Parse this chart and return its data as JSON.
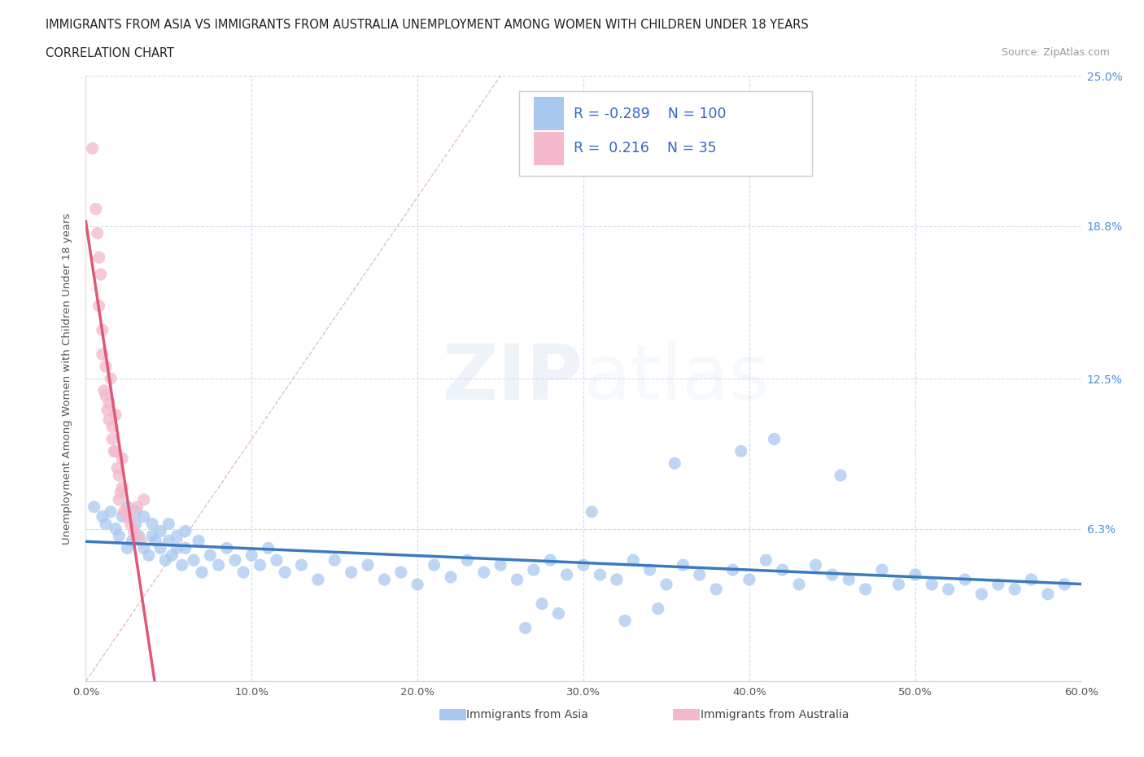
{
  "title_line1": "IMMIGRANTS FROM ASIA VS IMMIGRANTS FROM AUSTRALIA UNEMPLOYMENT AMONG WOMEN WITH CHILDREN UNDER 18 YEARS",
  "title_line2": "CORRELATION CHART",
  "source_text": "Source: ZipAtlas.com",
  "ylabel": "Unemployment Among Women with Children Under 18 years",
  "xlim": [
    0.0,
    0.6
  ],
  "ylim": [
    0.0,
    0.25
  ],
  "yticks": [
    0.0,
    0.063,
    0.125,
    0.188,
    0.25
  ],
  "ytick_labels": [
    "",
    "6.3%",
    "12.5%",
    "18.8%",
    "25.0%"
  ],
  "xticks": [
    0.0,
    0.1,
    0.2,
    0.3,
    0.4,
    0.5,
    0.6
  ],
  "xtick_labels": [
    "0.0%",
    "10.0%",
    "20.0%",
    "30.0%",
    "40.0%",
    "50.0%",
    "60.0%"
  ],
  "asia_R": -0.289,
  "asia_N": 100,
  "australia_R": 0.216,
  "australia_N": 35,
  "asia_color": "#a8c8f0",
  "australia_color": "#f4b8cc",
  "asia_line_color": "#3a7abf",
  "australia_line_color": "#e05878",
  "watermark_part1": "ZIP",
  "watermark_part2": "atlas",
  "legend_asia": "Immigrants from Asia",
  "legend_australia": "Immigrants from Australia",
  "asia_scatter_x": [
    0.005,
    0.01,
    0.012,
    0.015,
    0.018,
    0.02,
    0.022,
    0.025,
    0.025,
    0.028,
    0.03,
    0.03,
    0.032,
    0.035,
    0.035,
    0.038,
    0.04,
    0.04,
    0.042,
    0.045,
    0.045,
    0.048,
    0.05,
    0.05,
    0.052,
    0.055,
    0.055,
    0.058,
    0.06,
    0.06,
    0.065,
    0.068,
    0.07,
    0.075,
    0.08,
    0.085,
    0.09,
    0.095,
    0.1,
    0.105,
    0.11,
    0.115,
    0.12,
    0.13,
    0.14,
    0.15,
    0.16,
    0.17,
    0.18,
    0.19,
    0.2,
    0.21,
    0.22,
    0.23,
    0.24,
    0.25,
    0.26,
    0.27,
    0.28,
    0.29,
    0.3,
    0.31,
    0.32,
    0.33,
    0.34,
    0.35,
    0.36,
    0.37,
    0.38,
    0.39,
    0.4,
    0.41,
    0.42,
    0.43,
    0.44,
    0.45,
    0.46,
    0.47,
    0.48,
    0.49,
    0.5,
    0.51,
    0.52,
    0.53,
    0.54,
    0.55,
    0.56,
    0.57,
    0.58,
    0.59,
    0.355,
    0.395,
    0.415,
    0.455,
    0.305,
    0.285,
    0.325,
    0.345,
    0.275,
    0.265
  ],
  "asia_scatter_y": [
    0.072,
    0.068,
    0.065,
    0.07,
    0.063,
    0.06,
    0.068,
    0.055,
    0.072,
    0.058,
    0.065,
    0.07,
    0.06,
    0.055,
    0.068,
    0.052,
    0.06,
    0.065,
    0.058,
    0.055,
    0.062,
    0.05,
    0.058,
    0.065,
    0.052,
    0.055,
    0.06,
    0.048,
    0.055,
    0.062,
    0.05,
    0.058,
    0.045,
    0.052,
    0.048,
    0.055,
    0.05,
    0.045,
    0.052,
    0.048,
    0.055,
    0.05,
    0.045,
    0.048,
    0.042,
    0.05,
    0.045,
    0.048,
    0.042,
    0.045,
    0.04,
    0.048,
    0.043,
    0.05,
    0.045,
    0.048,
    0.042,
    0.046,
    0.05,
    0.044,
    0.048,
    0.044,
    0.042,
    0.05,
    0.046,
    0.04,
    0.048,
    0.044,
    0.038,
    0.046,
    0.042,
    0.05,
    0.046,
    0.04,
    0.048,
    0.044,
    0.042,
    0.038,
    0.046,
    0.04,
    0.044,
    0.04,
    0.038,
    0.042,
    0.036,
    0.04,
    0.038,
    0.042,
    0.036,
    0.04,
    0.09,
    0.095,
    0.1,
    0.085,
    0.07,
    0.028,
    0.025,
    0.03,
    0.032,
    0.022
  ],
  "australia_scatter_x": [
    0.004,
    0.006,
    0.007,
    0.008,
    0.009,
    0.01,
    0.011,
    0.012,
    0.013,
    0.014,
    0.015,
    0.016,
    0.017,
    0.018,
    0.019,
    0.02,
    0.021,
    0.022,
    0.023,
    0.025,
    0.027,
    0.029,
    0.031,
    0.033,
    0.035,
    0.008,
    0.012,
    0.016,
    0.02,
    0.025,
    0.01,
    0.014,
    0.018,
    0.022,
    0.03
  ],
  "australia_scatter_y": [
    0.22,
    0.195,
    0.185,
    0.175,
    0.168,
    0.145,
    0.12,
    0.118,
    0.112,
    0.108,
    0.125,
    0.1,
    0.095,
    0.11,
    0.088,
    0.075,
    0.078,
    0.092,
    0.07,
    0.068,
    0.065,
    0.062,
    0.072,
    0.058,
    0.075,
    0.155,
    0.13,
    0.105,
    0.085,
    0.07,
    0.135,
    0.115,
    0.095,
    0.08,
    0.06
  ],
  "aus_trend_x_start": 0.0,
  "aus_trend_x_end": 0.065,
  "diag_line_x": [
    0.0,
    0.25
  ],
  "diag_line_y": [
    0.0,
    0.25
  ]
}
